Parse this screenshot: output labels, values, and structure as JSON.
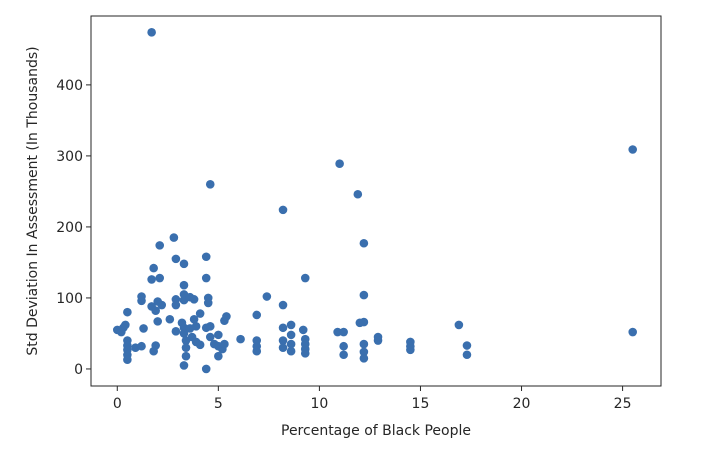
{
  "chart_data": {
    "type": "scatter",
    "xlabel": "Percentage of Black People",
    "ylabel": "Std Deviation In Assessment (In Thousands)",
    "xlim": [
      -1.3,
      26.9
    ],
    "ylim": [
      -24,
      497
    ],
    "xticks": [
      0,
      5,
      10,
      15,
      20,
      25
    ],
    "yticks": [
      0,
      100,
      200,
      300,
      400
    ],
    "xtick_labels": [
      "0",
      "5",
      "10",
      "15",
      "20",
      "25"
    ],
    "ytick_labels": [
      "0",
      "100",
      "200",
      "300",
      "400"
    ],
    "marker_color": "#3a6fae",
    "grid": false,
    "points": [
      [
        1.7,
        474
      ],
      [
        25.5,
        309
      ],
      [
        25.5,
        52
      ],
      [
        11.0,
        289
      ],
      [
        11.9,
        246
      ],
      [
        4.6,
        260
      ],
      [
        8.2,
        224
      ],
      [
        12.2,
        177
      ],
      [
        2.8,
        185
      ],
      [
        2.1,
        174
      ],
      [
        4.4,
        158
      ],
      [
        2.9,
        155
      ],
      [
        3.3,
        148
      ],
      [
        1.8,
        142
      ],
      [
        4.4,
        128
      ],
      [
        9.3,
        128
      ],
      [
        1.7,
        126
      ],
      [
        2.1,
        128
      ],
      [
        3.3,
        118
      ],
      [
        0.5,
        80
      ],
      [
        1.2,
        102
      ],
      [
        1.2,
        96
      ],
      [
        2.0,
        95
      ],
      [
        1.7,
        88
      ],
      [
        2.2,
        90
      ],
      [
        1.9,
        82
      ],
      [
        2.9,
        98
      ],
      [
        2.9,
        90
      ],
      [
        3.3,
        105
      ],
      [
        3.3,
        97
      ],
      [
        3.6,
        101
      ],
      [
        3.8,
        98
      ],
      [
        4.5,
        100
      ],
      [
        4.5,
        93
      ],
      [
        7.4,
        102
      ],
      [
        8.2,
        90
      ],
      [
        12.2,
        104
      ],
      [
        0.0,
        55
      ],
      [
        0.2,
        52
      ],
      [
        0.3,
        58
      ],
      [
        0.4,
        62
      ],
      [
        0.5,
        40
      ],
      [
        0.5,
        33
      ],
      [
        0.5,
        27
      ],
      [
        0.5,
        20
      ],
      [
        0.5,
        13
      ],
      [
        0.9,
        30
      ],
      [
        1.2,
        32
      ],
      [
        1.3,
        57
      ],
      [
        1.8,
        25
      ],
      [
        1.9,
        33
      ],
      [
        2.0,
        67
      ],
      [
        2.6,
        70
      ],
      [
        2.9,
        53
      ],
      [
        3.2,
        65
      ],
      [
        3.3,
        58
      ],
      [
        3.3,
        50
      ],
      [
        3.4,
        40
      ],
      [
        3.4,
        30
      ],
      [
        3.4,
        18
      ],
      [
        3.3,
        5
      ],
      [
        3.6,
        57
      ],
      [
        3.7,
        45
      ],
      [
        3.8,
        70
      ],
      [
        3.9,
        38
      ],
      [
        3.9,
        60
      ],
      [
        4.1,
        34
      ],
      [
        4.1,
        78
      ],
      [
        4.4,
        58
      ],
      [
        4.4,
        0
      ],
      [
        4.6,
        60
      ],
      [
        4.6,
        45
      ],
      [
        4.8,
        35
      ],
      [
        5.0,
        48
      ],
      [
        5.0,
        32
      ],
      [
        5.0,
        18
      ],
      [
        5.2,
        28
      ],
      [
        5.3,
        35
      ],
      [
        5.3,
        68
      ],
      [
        5.4,
        74
      ],
      [
        6.1,
        42
      ],
      [
        6.9,
        76
      ],
      [
        6.9,
        40
      ],
      [
        6.9,
        32
      ],
      [
        6.9,
        25
      ],
      [
        8.2,
        58
      ],
      [
        8.2,
        40
      ],
      [
        8.2,
        30
      ],
      [
        8.6,
        62
      ],
      [
        8.6,
        48
      ],
      [
        8.6,
        35
      ],
      [
        8.6,
        25
      ],
      [
        9.2,
        55
      ],
      [
        9.3,
        42
      ],
      [
        9.3,
        35
      ],
      [
        9.3,
        28
      ],
      [
        9.3,
        22
      ],
      [
        10.9,
        52
      ],
      [
        11.2,
        52
      ],
      [
        11.2,
        32
      ],
      [
        11.2,
        20
      ],
      [
        12.0,
        65
      ],
      [
        12.2,
        66
      ],
      [
        12.2,
        35
      ],
      [
        12.2,
        24
      ],
      [
        12.2,
        15
      ],
      [
        12.9,
        45
      ],
      [
        12.9,
        40
      ],
      [
        14.5,
        38
      ],
      [
        14.5,
        32
      ],
      [
        14.5,
        27
      ],
      [
        16.9,
        62
      ],
      [
        17.3,
        33
      ],
      [
        17.3,
        20
      ]
    ]
  }
}
